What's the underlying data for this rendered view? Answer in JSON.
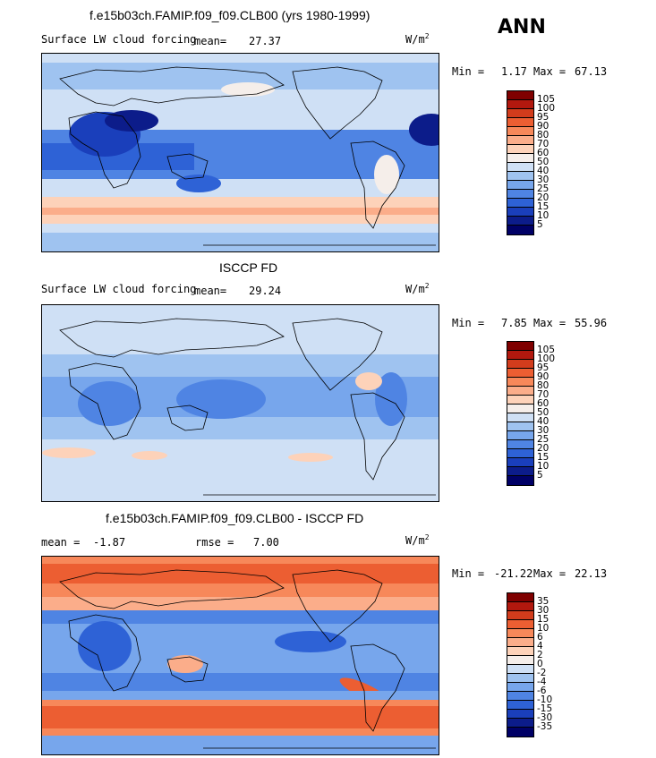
{
  "season": "ANN",
  "panels": [
    {
      "title": "f.e15b03ch.FAMIP.f09_f09.CLB00 (yrs 1980-1999)",
      "subtitle": "Surface LW cloud forcing",
      "mean_label": "mean=",
      "mean_value": "27.37",
      "units": "W/m",
      "units_exp": "2",
      "min_label": "Min =",
      "min_value": "1.17",
      "max_label": "Max =",
      "max_value": "67.13",
      "colorbar_labels": [
        "105",
        "100",
        "95",
        "90",
        "80",
        "70",
        "60",
        "50",
        "40",
        "30",
        "25",
        "20",
        "15",
        "10",
        "5"
      ],
      "colorbar_colors": [
        "#7f0000",
        "#b2180e",
        "#d23c1c",
        "#ec5e32",
        "#f7885a",
        "#fbad8a",
        "#fdd2b9",
        "#f5eeea",
        "#cfe0f5",
        "#9fc3f0",
        "#77a6ec",
        "#4f84e3",
        "#2e62d6",
        "#1a3fbb",
        "#0c1c8a",
        "#000066"
      ]
    },
    {
      "title": "ISCCP FD",
      "subtitle": "Surface LW cloud forcing",
      "mean_label": "mean=",
      "mean_value": "29.24",
      "units": "W/m",
      "units_exp": "2",
      "min_label": "Min =",
      "min_value": "7.85",
      "max_label": "Max =",
      "max_value": "55.96",
      "colorbar_labels": [
        "105",
        "100",
        "95",
        "90",
        "80",
        "70",
        "60",
        "50",
        "40",
        "30",
        "25",
        "20",
        "15",
        "10",
        "5"
      ],
      "colorbar_colors": [
        "#7f0000",
        "#b2180e",
        "#d23c1c",
        "#ec5e32",
        "#f7885a",
        "#fbad8a",
        "#fdd2b9",
        "#f5eeea",
        "#cfe0f5",
        "#9fc3f0",
        "#77a6ec",
        "#4f84e3",
        "#2e62d6",
        "#1a3fbb",
        "#0c1c8a",
        "#000066"
      ]
    },
    {
      "title": "f.e15b03ch.FAMIP.f09_f09.CLB00 - ISCCP FD",
      "mean_label": "mean =",
      "mean_value": "-1.87",
      "rmse_label": "rmse =",
      "rmse_value": "7.00",
      "units": "W/m",
      "units_exp": "2",
      "min_label": "Min =",
      "min_value": "-21.22",
      "max_label": "Max =",
      "max_value": "22.13",
      "colorbar_labels": [
        "35",
        "30",
        "15",
        "10",
        "6",
        "4",
        "2",
        "0",
        "-2",
        "-4",
        "-6",
        "-10",
        "-15",
        "-30",
        "-35"
      ],
      "colorbar_colors": [
        "#7f0000",
        "#b2180e",
        "#d23c1c",
        "#ec5e32",
        "#f7885a",
        "#fbad8a",
        "#fdd2b9",
        "#f5eeea",
        "#cfe0f5",
        "#9fc3f0",
        "#77a6ec",
        "#4f84e3",
        "#2e62d6",
        "#1a3fbb",
        "#0c1c8a",
        "#000066"
      ]
    }
  ]
}
